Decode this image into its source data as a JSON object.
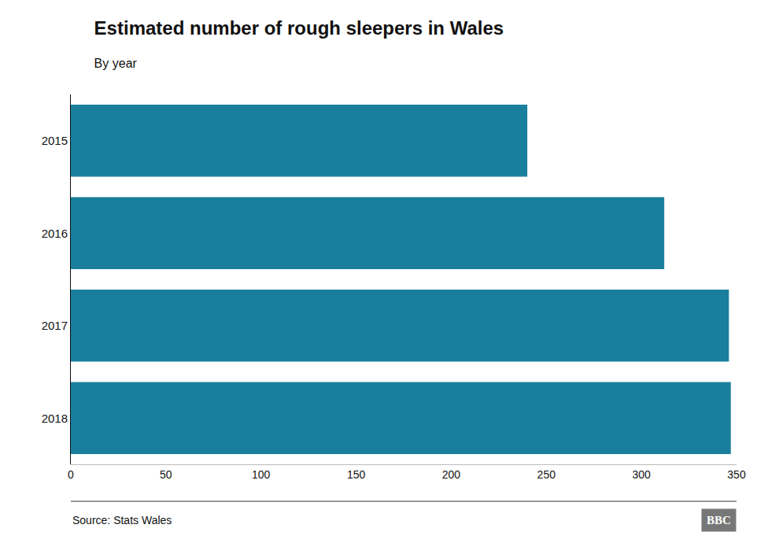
{
  "chart_data": {
    "type": "bar",
    "orientation": "horizontal",
    "title": "Estimated number of rough sleepers in Wales",
    "subtitle": "By year",
    "categories": [
      "2015",
      "2016",
      "2017",
      "2018"
    ],
    "values": [
      240,
      312,
      346,
      347
    ],
    "color": "#1a7f9c",
    "xlim": [
      0,
      350
    ],
    "xticks": [
      0,
      50,
      100,
      150,
      200,
      250,
      300,
      350
    ],
    "grid": false,
    "annotations": [
      "Source: Stats Wales",
      "BBC"
    ]
  }
}
